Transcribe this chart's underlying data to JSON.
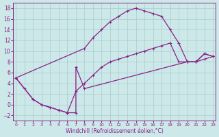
{
  "xlabel": "Windchill (Refroidissement éolien,°C)",
  "bg_color": "#cce8e8",
  "line_color": "#882288",
  "grid_color": "#aacccc",
  "xlim": [
    -0.3,
    23.3
  ],
  "ylim": [
    -3,
    19
  ],
  "xticks": [
    0,
    1,
    2,
    3,
    4,
    5,
    6,
    7,
    8,
    9,
    10,
    11,
    12,
    13,
    14,
    15,
    16,
    17,
    18,
    19,
    20,
    21,
    22,
    23
  ],
  "yticks": [
    -2,
    0,
    2,
    4,
    6,
    8,
    10,
    12,
    14,
    16,
    18
  ],
  "curve1_x": [
    0,
    8,
    9,
    10,
    11,
    12,
    13,
    14,
    15,
    16,
    17,
    18,
    19,
    20,
    21,
    22,
    23
  ],
  "curve1_y": [
    5,
    10.5,
    12.5,
    14,
    15.5,
    16.5,
    17.5,
    18,
    17.5,
    17,
    16.5,
    14,
    11.5,
    8,
    8,
    9.5,
    9
  ],
  "curve2_x": [
    0,
    1,
    2,
    3,
    4,
    5,
    6,
    7,
    7,
    8,
    20,
    21,
    22,
    23
  ],
  "curve2_y": [
    5,
    3,
    1,
    0,
    -0.5,
    -1,
    -1.5,
    -1.5,
    7,
    3,
    8,
    8,
    9.5,
    9
  ],
  "curve3_x": [
    0,
    2,
    3,
    4,
    5,
    6,
    7,
    8,
    9,
    10,
    11,
    12,
    13,
    14,
    15,
    16,
    17,
    18,
    19,
    20,
    21,
    22,
    23
  ],
  "curve3_y": [
    5,
    1,
    0,
    -0.5,
    -1,
    -1.5,
    2.5,
    4,
    5.5,
    7,
    8,
    8.5,
    9,
    9.5,
    10,
    10.5,
    11,
    11.5,
    8,
    8,
    8,
    8.5,
    9
  ]
}
